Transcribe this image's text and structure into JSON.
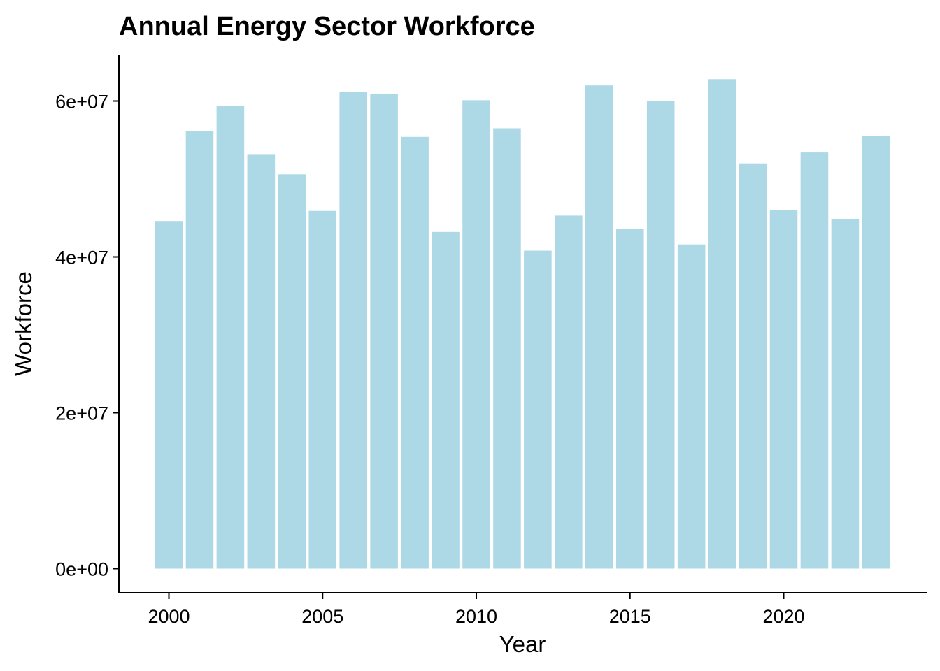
{
  "chart_data": {
    "type": "bar",
    "title": "Annual Energy Sector Workforce",
    "xlabel": "Year",
    "ylabel": "Workforce",
    "bar_color": "#add8e6",
    "grid": false,
    "legend": "none",
    "categories": [
      2000,
      2001,
      2002,
      2003,
      2004,
      2005,
      2006,
      2007,
      2008,
      2009,
      2010,
      2011,
      2012,
      2013,
      2014,
      2015,
      2016,
      2017,
      2018,
      2019,
      2020,
      2021,
      2022,
      2023
    ],
    "values": [
      44600000,
      56100000,
      59400000,
      53100000,
      50600000,
      45900000,
      61200000,
      60900000,
      55400000,
      43200000,
      60100000,
      56500000,
      40800000,
      45300000,
      62000000,
      43600000,
      60000000,
      41600000,
      62800000,
      52000000,
      46000000,
      53400000,
      44800000,
      55500000
    ],
    "xlim": [
      1999,
      2024
    ],
    "ylim": [
      0,
      65000000
    ],
    "x_ticks": [
      2000,
      2005,
      2010,
      2015,
      2020
    ],
    "x_tick_labels": [
      "2000",
      "2005",
      "2010",
      "2015",
      "2020"
    ],
    "y_ticks": [
      0,
      20000000,
      40000000,
      60000000
    ],
    "y_tick_labels": [
      "0e+00",
      "2e+07",
      "4e+07",
      "6e+07"
    ]
  }
}
